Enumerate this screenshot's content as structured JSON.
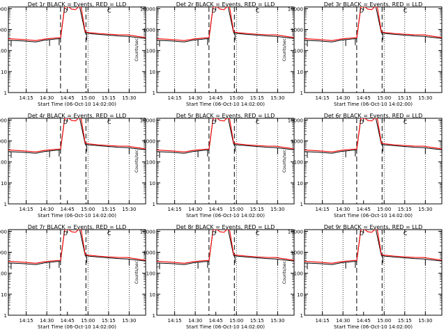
{
  "panels": [
    {
      "title": "Det 1r BLACK = Events, RED = LLD"
    },
    {
      "title": "Det 2r BLACK = Events, RED = LLD"
    },
    {
      "title": "Det 3r BLACK = Events, RED = LLD"
    },
    {
      "title": "Det 4r BLACK = Events, RED = LLD"
    },
    {
      "title": "Det 5r BLACK = Events, RED = LLD"
    },
    {
      "title": "Det 6r BLACK = Events, RED = LLD"
    },
    {
      "title": "Det 7r BLACK = Events, RED = LLD"
    },
    {
      "title": "Det 8r BLACK = Events, RED = LLD"
    },
    {
      "title": "Det 9r BLACK = Events, RED = LLD"
    }
  ],
  "chart_data": {
    "type": "line",
    "layout": "3x3 small multiples",
    "xlabel": "Start Time (06-Oct-10 14:02:00)",
    "ylabel": "Counts/sec",
    "y_scale": "log",
    "ylim": [
      1,
      12000
    ],
    "yticks": [
      "1",
      "10",
      "100",
      "1000",
      "10000"
    ],
    "xlim_minutes_after_start": [
      0,
      100
    ],
    "xticks": [
      "14:15",
      "14:30",
      "14:45",
      "15:00",
      "15:15",
      "15:30"
    ],
    "dotted_vlines": [
      "14:15",
      "14:30",
      "15:00",
      "15:15",
      "15:30"
    ],
    "dashed_vlines_minutes_after_start": [
      38,
      56.5
    ],
    "series": [
      {
        "name": "Events",
        "color": "#000000",
        "x": [
          0,
          10,
          20,
          27,
          31,
          35,
          38,
          41,
          44,
          49,
          52,
          56,
          59,
          65,
          72,
          80,
          87,
          90,
          100
        ],
        "y": [
          310,
          290,
          260,
          320,
          340,
          360,
          370,
          12000,
          12000,
          12000,
          12000,
          700,
          650,
          600,
          550,
          500,
          480,
          450,
          380
        ]
      },
      {
        "name": "LLD",
        "color": "#ff0000",
        "x": [
          0,
          10,
          20,
          27,
          31,
          35,
          38,
          41,
          44,
          46,
          49,
          51,
          53,
          56,
          59,
          65,
          72,
          80,
          87,
          90,
          100
        ],
        "y": [
          370,
          340,
          300,
          360,
          380,
          400,
          410,
          12000,
          12000,
          9500,
          9000,
          12000,
          12000,
          780,
          720,
          660,
          610,
          570,
          560,
          520,
          420
        ]
      }
    ],
    "annotations": [
      "D",
      "C"
    ]
  }
}
